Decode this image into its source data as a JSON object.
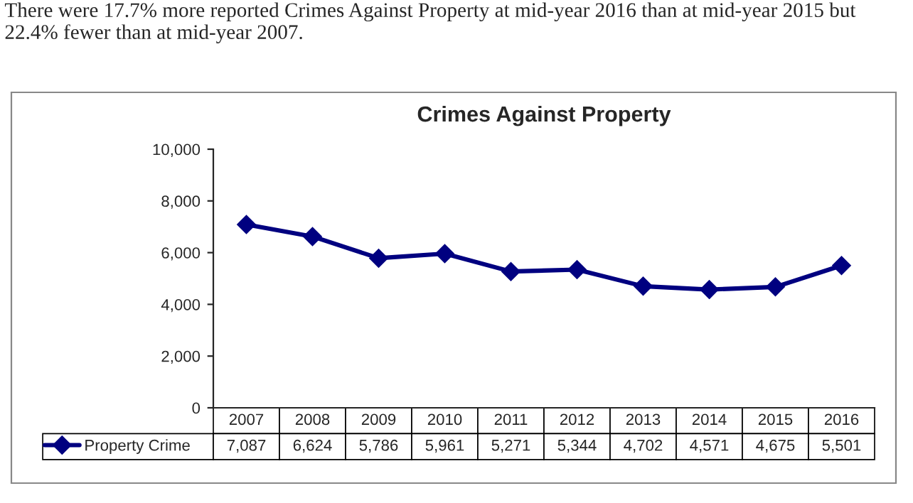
{
  "chart_data": {
    "type": "line",
    "title": "Crimes Against Property",
    "annotations": [
      "There were 17.7% more reported Crimes Against Property at mid-year 2016 than at mid-year 2015 but 22.4% fewer than at mid-year 2007."
    ],
    "categories": [
      "2007",
      "2008",
      "2009",
      "2010",
      "2011",
      "2012",
      "2013",
      "2014",
      "2015",
      "2016"
    ],
    "series": [
      {
        "name": "Property Crime",
        "color": "#000080",
        "values": [
          7087,
          6624,
          5786,
          5961,
          5271,
          5344,
          4702,
          4571,
          4675,
          5501
        ],
        "value_labels": [
          "7,087",
          "6,624",
          "5,786",
          "5,961",
          "5,271",
          "5,344",
          "4,702",
          "4,571",
          "4,675",
          "5,501"
        ]
      }
    ],
    "ylim": [
      0,
      10000
    ],
    "yticks": [
      0,
      {
        "value": 2000,
        "label": "2,000"
      },
      {
        "value": 4000,
        "label": "4,000"
      },
      {
        "value": 6000,
        "label": "6,000"
      },
      {
        "value": 8000,
        "label": "8,000"
      },
      {
        "value": 10000,
        "label": "10,000"
      }
    ],
    "grid": false,
    "legend": "bottom left",
    "marker": "diamond",
    "line_style": "solid"
  }
}
